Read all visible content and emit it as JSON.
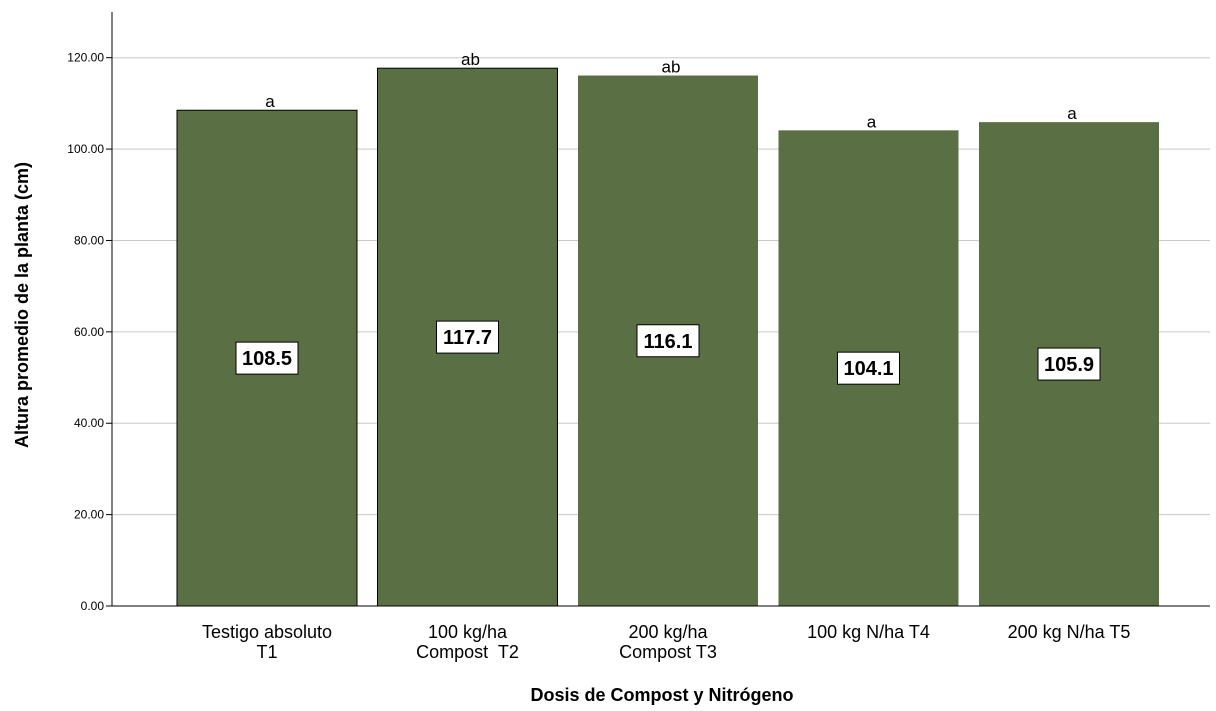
{
  "chart_data": {
    "type": "bar",
    "categories": [
      [
        "Testigo absoluto",
        "T1"
      ],
      [
        "100 kg/ha",
        "Compost  T2"
      ],
      [
        "200 kg/ha",
        "Compost T3"
      ],
      [
        "100 kg N/ha T4"
      ],
      [
        "200 kg N/ha T5"
      ]
    ],
    "values": [
      108.5,
      117.7,
      116.1,
      104.1,
      105.9
    ],
    "value_labels": [
      "108.5",
      "117.7",
      "116.1",
      "104.1",
      "105.9"
    ],
    "significance_letters": [
      "a",
      "ab",
      "ab",
      "a",
      "a"
    ],
    "xlabel": "Dosis de Compost y Nitrógeno",
    "ylabel": "Altura promedio de la planta (cm)",
    "ylim": [
      0,
      130
    ],
    "yticks": [
      0,
      20,
      40,
      60,
      80,
      100,
      120
    ],
    "ytick_labels": [
      "0.00",
      "20.00",
      "40.00",
      "60.00",
      "80.00",
      "100.00",
      "120.00"
    ],
    "grid": true,
    "bar_color": "#5b6f45"
  }
}
